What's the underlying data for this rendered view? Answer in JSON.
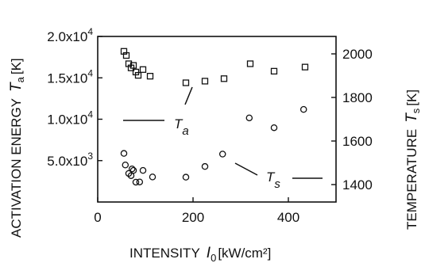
{
  "chart_data": {
    "type": "scatter",
    "xlabel": {
      "text": "INTENSITY",
      "symbol": "I",
      "sub": "0",
      "unit": "[kW/cm²]"
    },
    "ylabel_left": {
      "text": "ACTIVATION ENERGY",
      "symbol": "T",
      "sub": "a",
      "unit": "[K]"
    },
    "ylabel_right": {
      "text": "TEMPERATURE",
      "symbol": "T",
      "sub": "s",
      "unit": "[K]"
    },
    "xlim": [
      0,
      500
    ],
    "ylim_left": [
      0,
      20000
    ],
    "ylim_right": [
      1320,
      2080
    ],
    "x_ticks": [
      {
        "value": 0,
        "label": "0"
      },
      {
        "value": 200,
        "label": "200"
      },
      {
        "value": 400,
        "label": "400"
      }
    ],
    "y_left_ticks": [
      {
        "value": 5000,
        "mant": "5.0x10",
        "exp": "3"
      },
      {
        "value": 10000,
        "mant": "1.0x10",
        "exp": "4"
      },
      {
        "value": 15000,
        "mant": "1.5x10",
        "exp": "4"
      },
      {
        "value": 20000,
        "mant": "2.0x10",
        "exp": "4"
      }
    ],
    "y_right_ticks": [
      {
        "value": 1400,
        "label": "1400"
      },
      {
        "value": 1600,
        "label": "1600"
      },
      {
        "value": 1800,
        "label": "1800"
      },
      {
        "value": 2000,
        "label": "2000"
      }
    ],
    "series": [
      {
        "name": "T_a",
        "axis": "left",
        "marker": "square",
        "label": {
          "symbol": "T",
          "sub": "a"
        },
        "points": [
          [
            55,
            18200
          ],
          [
            60,
            17700
          ],
          [
            65,
            16700
          ],
          [
            70,
            16200
          ],
          [
            75,
            16500
          ],
          [
            80,
            15700
          ],
          [
            85,
            15300
          ],
          [
            95,
            16000
          ],
          [
            110,
            15200
          ],
          [
            185,
            14400
          ],
          [
            225,
            14600
          ],
          [
            265,
            14900
          ],
          [
            320,
            16700
          ],
          [
            370,
            15800
          ],
          [
            435,
            16300
          ]
        ]
      },
      {
        "name": "T_s",
        "axis": "right",
        "marker": "circle",
        "label": {
          "symbol": "T",
          "sub": "s"
        },
        "points": [
          [
            55,
            1543
          ],
          [
            58,
            1490
          ],
          [
            65,
            1451
          ],
          [
            70,
            1441
          ],
          [
            72,
            1472
          ],
          [
            75,
            1465
          ],
          [
            80,
            1411
          ],
          [
            88,
            1412
          ],
          [
            95,
            1465
          ],
          [
            115,
            1435
          ],
          [
            185,
            1434
          ],
          [
            225,
            1483
          ],
          [
            262,
            1540
          ],
          [
            318,
            1706
          ],
          [
            370,
            1661
          ],
          [
            432,
            1745
          ]
        ]
      }
    ]
  }
}
